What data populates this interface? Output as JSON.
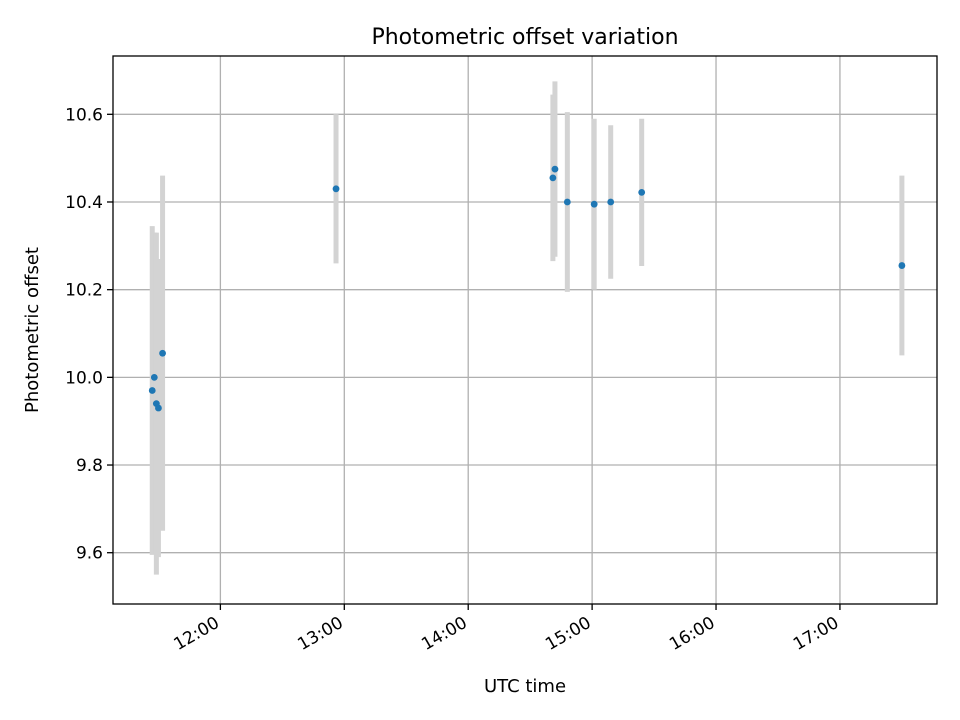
{
  "chart_data": {
    "type": "scatter",
    "title": "Photometric offset variation",
    "xlabel": "UTC time",
    "ylabel": "Photometric offset",
    "x_ticks": [
      "12:00",
      "13:00",
      "14:00",
      "15:00",
      "16:00",
      "17:00"
    ],
    "y_ticks": [
      "9.6",
      "9.8",
      "10.0",
      "10.2",
      "10.4",
      "10.6"
    ],
    "xlim": [
      "11:08",
      "17:47"
    ],
    "ylim": [
      9.483,
      10.733
    ],
    "grid": true,
    "colors": {
      "marker": "#1f77b4",
      "errorbar": "#d3d3d3",
      "grid": "#b0b0b0"
    },
    "series": [
      {
        "points": [
          {
            "x": "11:27",
            "y": 9.97,
            "err": 0.375
          },
          {
            "x": "11:28",
            "y": 10.0,
            "err": 0.33
          },
          {
            "x": "11:29",
            "y": 9.94,
            "err": 0.39
          },
          {
            "x": "11:30",
            "y": 9.93,
            "err": 0.34
          },
          {
            "x": "11:32",
            "y": 10.055,
            "err": 0.405
          },
          {
            "x": "12:56",
            "y": 10.43,
            "err": 0.17
          },
          {
            "x": "14:41",
            "y": 10.455,
            "err": 0.19
          },
          {
            "x": "14:42",
            "y": 10.475,
            "err": 0.2
          },
          {
            "x": "14:48",
            "y": 10.4,
            "err": 0.205
          },
          {
            "x": "15:01",
            "y": 10.395,
            "err": 0.195
          },
          {
            "x": "15:09",
            "y": 10.4,
            "err": 0.175
          },
          {
            "x": "15:24",
            "y": 10.422,
            "err": 0.168
          },
          {
            "x": "17:30",
            "y": 10.255,
            "err": 0.205
          }
        ]
      }
    ]
  }
}
